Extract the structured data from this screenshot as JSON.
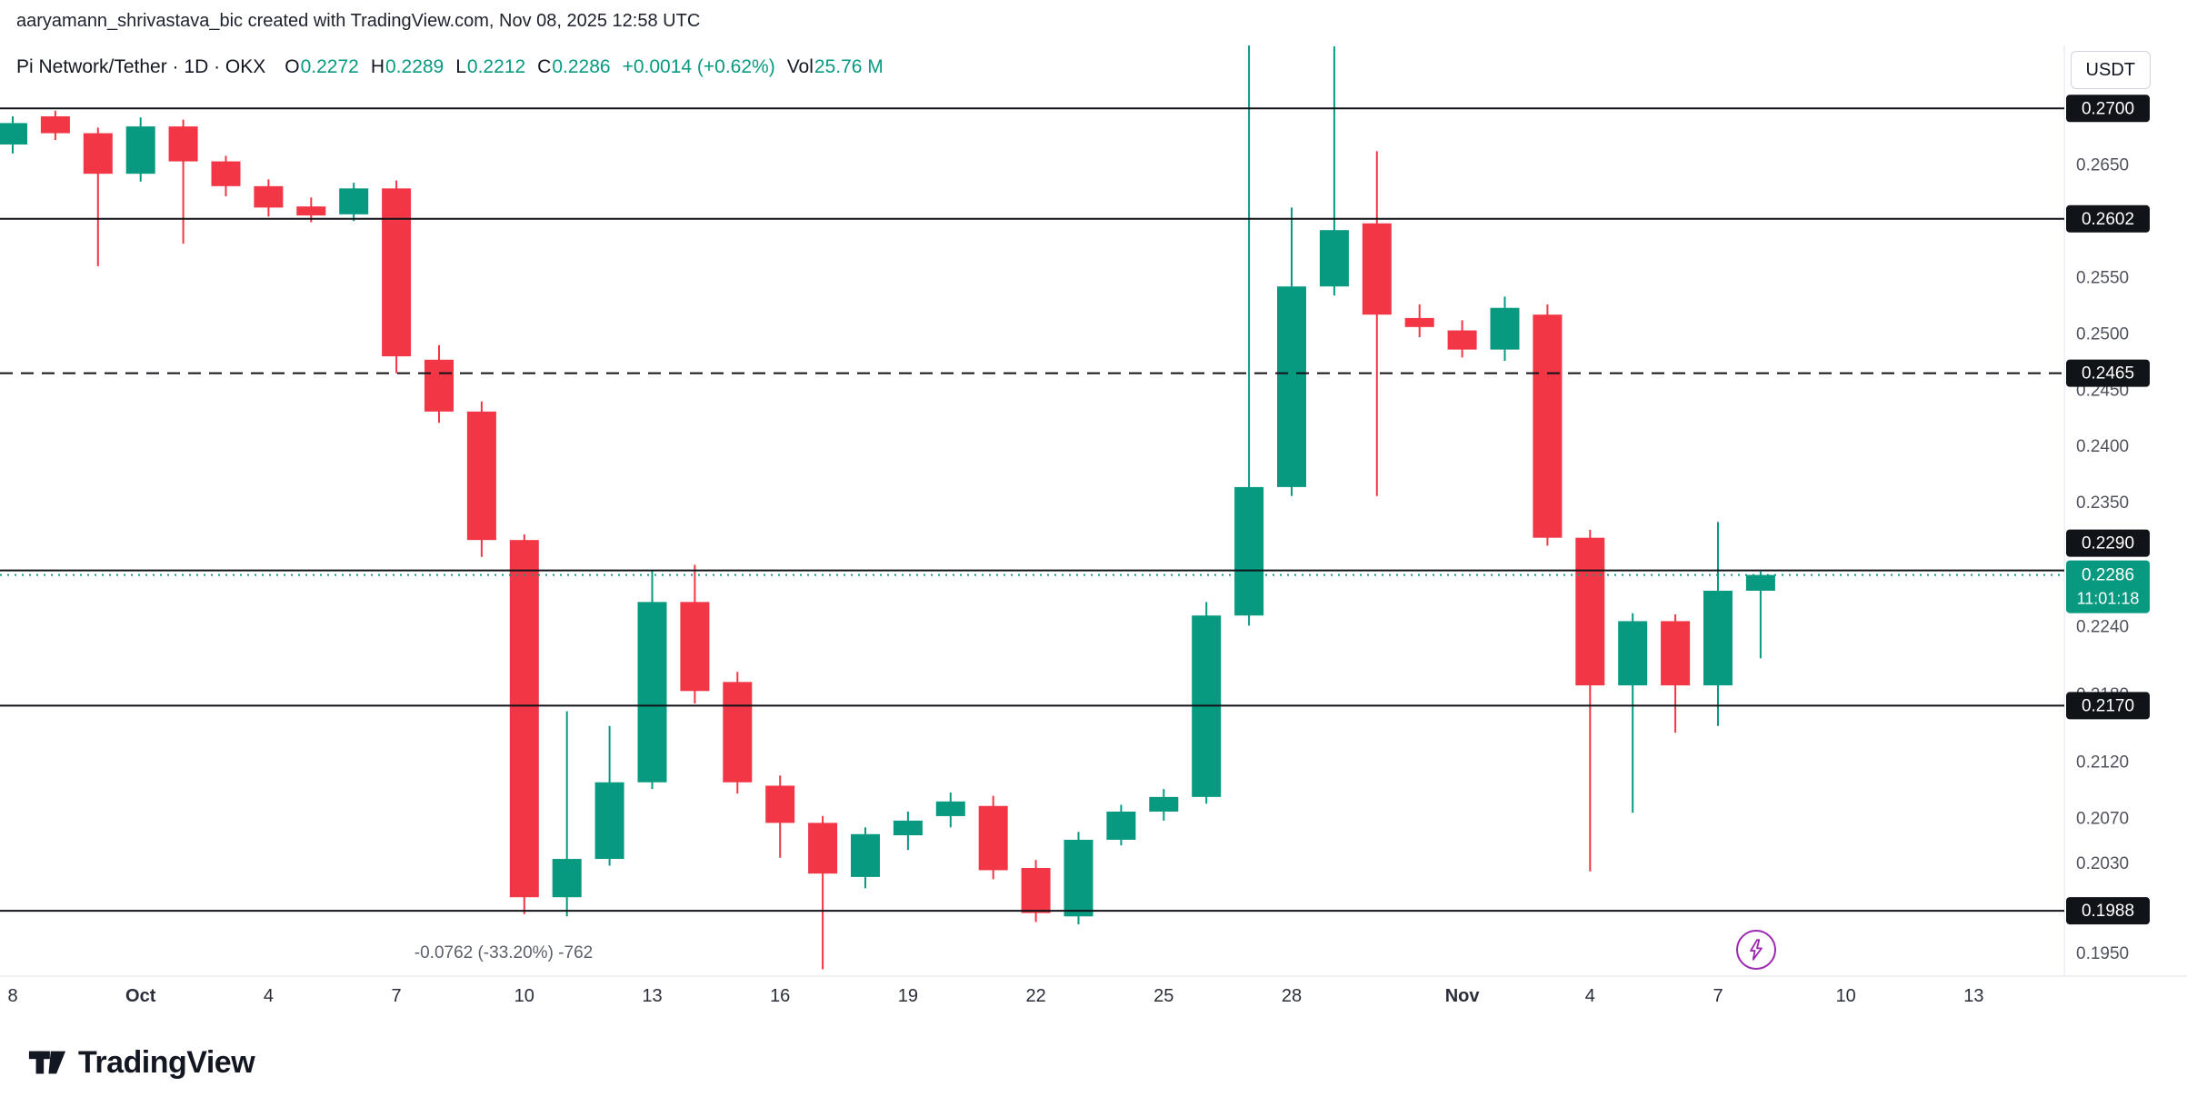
{
  "attribution": "aaryamann_shrivastava_bic created with TradingView.com, Nov 08, 2025 12:58 UTC",
  "currency_button": "USDT",
  "header": {
    "symbol_title": "Pi Network/Tether · 1D · OKX",
    "o_label": "O",
    "o_value": "0.2272",
    "h_label": "H",
    "h_value": "0.2289",
    "l_label": "L",
    "l_value": "0.2212",
    "c_label": "C",
    "c_value": "0.2286",
    "change": "+0.0014 (+0.62%)",
    "vol_label": "Vol",
    "vol_value": "25.76 M"
  },
  "colors": {
    "up": "#089981",
    "down": "#f23645",
    "level_line": "#101318",
    "axis_text": "#50535e",
    "time_text": "#2a2e39",
    "accent_purple": "#9c27b0"
  },
  "icons": {
    "flash_icon": "lightning-bolt",
    "logo_icon": "tradingview-mark"
  },
  "footer": {
    "logo_text": "TradingView"
  },
  "chart_data": {
    "type": "candlestick",
    "pair": "PI/USDT",
    "exchange": "OKX",
    "interval": "1D",
    "volume": "25.76 M",
    "y_domain": {
      "top": 0.2722,
      "bottom": 0.193
    },
    "price_axis_ticks": [
      0.265,
      0.255,
      0.25,
      0.245,
      0.24,
      0.235,
      0.224,
      0.218,
      0.212,
      0.207,
      0.203,
      0.195
    ],
    "levels": [
      {
        "value": 0.27,
        "style": "solid"
      },
      {
        "value": 0.2602,
        "style": "solid"
      },
      {
        "value": 0.2465,
        "style": "dashed"
      },
      {
        "value": 0.229,
        "style": "solid",
        "badge_dy": -30
      },
      {
        "value": 0.217,
        "style": "solid"
      },
      {
        "value": 0.1988,
        "style": "solid"
      }
    ],
    "current_price": {
      "value": 0.2286,
      "countdown": "11:01:18"
    },
    "annotation": {
      "text": "-0.0762 (-33.20%) -762"
    },
    "x_labels": [
      {
        "label": "8",
        "index": 0,
        "bold": false
      },
      {
        "label": "Oct",
        "index": 3,
        "bold": true
      },
      {
        "label": "4",
        "index": 6,
        "bold": false
      },
      {
        "label": "7",
        "index": 9,
        "bold": false
      },
      {
        "label": "10",
        "index": 12,
        "bold": false
      },
      {
        "label": "13",
        "index": 15,
        "bold": false
      },
      {
        "label": "16",
        "index": 18,
        "bold": false
      },
      {
        "label": "19",
        "index": 21,
        "bold": false
      },
      {
        "label": "22",
        "index": 24,
        "bold": false
      },
      {
        "label": "25",
        "index": 27,
        "bold": false
      },
      {
        "label": "28",
        "index": 30,
        "bold": false
      },
      {
        "label": "Nov",
        "index": 34,
        "bold": true
      },
      {
        "label": "4",
        "index": 37,
        "bold": false
      },
      {
        "label": "7",
        "index": 40,
        "bold": false
      },
      {
        "label": "10",
        "index": 43,
        "bold": false
      },
      {
        "label": "13",
        "index": 46,
        "bold": false
      }
    ],
    "candles": [
      {
        "t": "Sep 28",
        "o": 0.2668,
        "h": 0.2693,
        "l": 0.266,
        "c": 0.2687
      },
      {
        "t": "Sep 29",
        "o": 0.2693,
        "h": 0.2698,
        "l": 0.2672,
        "c": 0.2678
      },
      {
        "t": "Sep 30",
        "o": 0.2678,
        "h": 0.2683,
        "l": 0.256,
        "c": 0.2642
      },
      {
        "t": "Oct 1",
        "o": 0.2642,
        "h": 0.2692,
        "l": 0.2635,
        "c": 0.2684
      },
      {
        "t": "Oct 2",
        "o": 0.2684,
        "h": 0.269,
        "l": 0.258,
        "c": 0.2653
      },
      {
        "t": "Oct 3",
        "o": 0.2653,
        "h": 0.2658,
        "l": 0.2622,
        "c": 0.2631
      },
      {
        "t": "Oct 4",
        "o": 0.2631,
        "h": 0.2637,
        "l": 0.2604,
        "c": 0.2612
      },
      {
        "t": "Oct 5",
        "o": 0.2613,
        "h": 0.2621,
        "l": 0.2599,
        "c": 0.2605
      },
      {
        "t": "Oct 6",
        "o": 0.2606,
        "h": 0.2634,
        "l": 0.26,
        "c": 0.2629
      },
      {
        "t": "Oct 7",
        "o": 0.2629,
        "h": 0.2636,
        "l": 0.2465,
        "c": 0.248
      },
      {
        "t": "Oct 8",
        "o": 0.2477,
        "h": 0.249,
        "l": 0.2421,
        "c": 0.2431
      },
      {
        "t": "Oct 9",
        "o": 0.2431,
        "h": 0.244,
        "l": 0.2302,
        "c": 0.2317
      },
      {
        "t": "Oct 10",
        "o": 0.2317,
        "h": 0.2322,
        "l": 0.1985,
        "c": 0.2
      },
      {
        "t": "Oct 11",
        "o": 0.2,
        "h": 0.2165,
        "l": 0.1983,
        "c": 0.2034
      },
      {
        "t": "Oct 12",
        "o": 0.2034,
        "h": 0.2152,
        "l": 0.2028,
        "c": 0.2102
      },
      {
        "t": "Oct 13",
        "o": 0.2102,
        "h": 0.229,
        "l": 0.2096,
        "c": 0.2262
      },
      {
        "t": "Oct 14",
        "o": 0.2262,
        "h": 0.2295,
        "l": 0.2172,
        "c": 0.2183
      },
      {
        "t": "Oct 15",
        "o": 0.2191,
        "h": 0.22,
        "l": 0.2092,
        "c": 0.2102
      },
      {
        "t": "Oct 16",
        "o": 0.2099,
        "h": 0.2108,
        "l": 0.2035,
        "c": 0.2066
      },
      {
        "t": "Oct 17",
        "o": 0.2066,
        "h": 0.2072,
        "l": 0.1936,
        "c": 0.2021
      },
      {
        "t": "Oct 18",
        "o": 0.2018,
        "h": 0.2062,
        "l": 0.2008,
        "c": 0.2056
      },
      {
        "t": "Oct 19",
        "o": 0.2055,
        "h": 0.2076,
        "l": 0.2042,
        "c": 0.2068
      },
      {
        "t": "Oct 20",
        "o": 0.2072,
        "h": 0.2093,
        "l": 0.2062,
        "c": 0.2085
      },
      {
        "t": "Oct 21",
        "o": 0.2081,
        "h": 0.209,
        "l": 0.2016,
        "c": 0.2024
      },
      {
        "t": "Oct 22",
        "o": 0.2026,
        "h": 0.2033,
        "l": 0.1978,
        "c": 0.1986
      },
      {
        "t": "Oct 23",
        "o": 0.1983,
        "h": 0.2058,
        "l": 0.1976,
        "c": 0.2051
      },
      {
        "t": "Oct 24",
        "o": 0.2051,
        "h": 0.2082,
        "l": 0.2046,
        "c": 0.2076
      },
      {
        "t": "Oct 25",
        "o": 0.2076,
        "h": 0.2096,
        "l": 0.2068,
        "c": 0.2089
      },
      {
        "t": "Oct 26",
        "o": 0.2089,
        "h": 0.2262,
        "l": 0.2083,
        "c": 0.225
      },
      {
        "t": "Oct 27",
        "o": 0.225,
        "h": 0.2758,
        "l": 0.2241,
        "c": 0.2364
      },
      {
        "t": "Oct 28",
        "o": 0.2364,
        "h": 0.2612,
        "l": 0.2356,
        "c": 0.2542
      },
      {
        "t": "Oct 29",
        "o": 0.2542,
        "h": 0.2755,
        "l": 0.2534,
        "c": 0.2592
      },
      {
        "t": "Oct 30",
        "o": 0.2598,
        "h": 0.2662,
        "l": 0.2356,
        "c": 0.2517
      },
      {
        "t": "Oct 31",
        "o": 0.2514,
        "h": 0.2526,
        "l": 0.2497,
        "c": 0.2506
      },
      {
        "t": "Nov 1",
        "o": 0.2503,
        "h": 0.2512,
        "l": 0.2479,
        "c": 0.2486
      },
      {
        "t": "Nov 2",
        "o": 0.2486,
        "h": 0.2533,
        "l": 0.2476,
        "c": 0.2523
      },
      {
        "t": "Nov 3",
        "o": 0.2517,
        "h": 0.2526,
        "l": 0.2312,
        "c": 0.2319
      },
      {
        "t": "Nov 4",
        "o": 0.2319,
        "h": 0.2326,
        "l": 0.2023,
        "c": 0.2188
      },
      {
        "t": "Nov 5",
        "o": 0.2188,
        "h": 0.2252,
        "l": 0.2075,
        "c": 0.2245
      },
      {
        "t": "Nov 6",
        "o": 0.2245,
        "h": 0.2251,
        "l": 0.2146,
        "c": 0.2188
      },
      {
        "t": "Nov 7",
        "o": 0.2188,
        "h": 0.2333,
        "l": 0.2152,
        "c": 0.2272
      },
      {
        "t": "Nov 8",
        "o": 0.2272,
        "h": 0.2289,
        "l": 0.2212,
        "c": 0.2286
      }
    ]
  }
}
